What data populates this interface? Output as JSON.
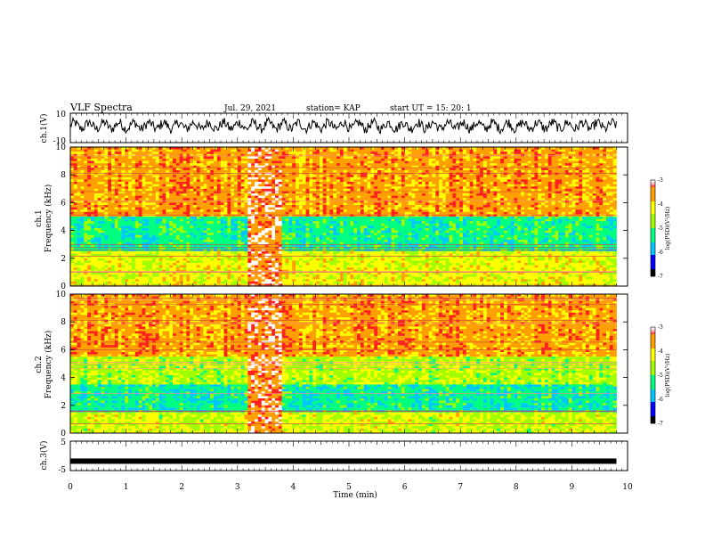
{
  "header": {
    "title": "VLF Spectra",
    "date": "Jul. 29, 2021",
    "station": "station= KAP",
    "start": "start  UT =   15: 20: 1"
  },
  "colors": {
    "spectrum": [
      "#000000",
      "#0000ff",
      "#00c8ff",
      "#00ff80",
      "#a0ff00",
      "#ffff00",
      "#ffa000",
      "#ff2020",
      "#ffffff"
    ]
  },
  "chart_data": [
    {
      "type": "line",
      "ylabel": "ch.1(V)",
      "ylim": [
        -10,
        10
      ],
      "yticks": [
        "10",
        "-10"
      ],
      "xlim": [
        0,
        10
      ],
      "trace": "noisy waveform between about -4 V and +7 V over the full 0–9.8 min span"
    },
    {
      "type": "heatmap",
      "ylabel": "Frequency (kHz)",
      "channel": "ch.1",
      "ylim": [
        0,
        10
      ],
      "yticks": [
        "0",
        "2",
        "4",
        "6",
        "8",
        "10"
      ],
      "xlim": [
        0,
        10
      ],
      "data_end_min": 9.8,
      "colorbar": {
        "label": "log(PSD)(V²/Hz)",
        "range": [
          -7,
          -3
        ],
        "ticks": [
          "-3",
          "-4",
          "-5",
          "-6",
          "-7"
        ]
      },
      "bands": [
        {
          "from_khz": 0,
          "to_khz": 1.5,
          "log_psd": -4.2
        },
        {
          "from_khz": 1.5,
          "to_khz": 2.5,
          "log_psd": -4.3
        },
        {
          "from_khz": 2.5,
          "to_khz": 5.0,
          "log_psd": -5.3
        },
        {
          "from_khz": 5.0,
          "to_khz": 10.0,
          "log_psd": -3.6
        }
      ],
      "event": {
        "from_min": 3.2,
        "to_min": 3.8,
        "note": "broadband enhancement across all frequencies"
      }
    },
    {
      "type": "heatmap",
      "ylabel": "Frequency (kHz)",
      "channel": "ch.2",
      "ylim": [
        0,
        10
      ],
      "yticks": [
        "0",
        "2",
        "4",
        "6",
        "8",
        "10"
      ],
      "xlim": [
        0,
        10
      ],
      "data_end_min": 9.8,
      "colorbar": {
        "label": "log(PSD)(V²/Hz)",
        "range": [
          -7,
          -3
        ],
        "ticks": [
          "-3",
          "-4",
          "-5",
          "-6",
          "-7"
        ]
      },
      "bands": [
        {
          "from_khz": 0,
          "to_khz": 1.5,
          "log_psd": -4.4
        },
        {
          "from_khz": 1.5,
          "to_khz": 3.5,
          "log_psd": -5.4
        },
        {
          "from_khz": 3.5,
          "to_khz": 5.5,
          "log_psd": -4.6
        },
        {
          "from_khz": 5.5,
          "to_khz": 10.0,
          "log_psd": -3.6
        }
      ],
      "event": {
        "from_min": 3.2,
        "to_min": 3.8,
        "note": "broadband enhancement across all frequencies"
      }
    },
    {
      "type": "line",
      "ylabel": "ch.3(V)",
      "ylim": [
        -5,
        5
      ],
      "yticks": [
        "5",
        "-5"
      ],
      "xlim": [
        0,
        10
      ],
      "xlabel": "Time (min)",
      "xticks": [
        "0",
        "1",
        "2",
        "3",
        "4",
        "5",
        "6",
        "7",
        "8",
        "9",
        "10"
      ],
      "trace": "thick flat band at about -1.8 V from 0 to 9.8 min"
    }
  ]
}
